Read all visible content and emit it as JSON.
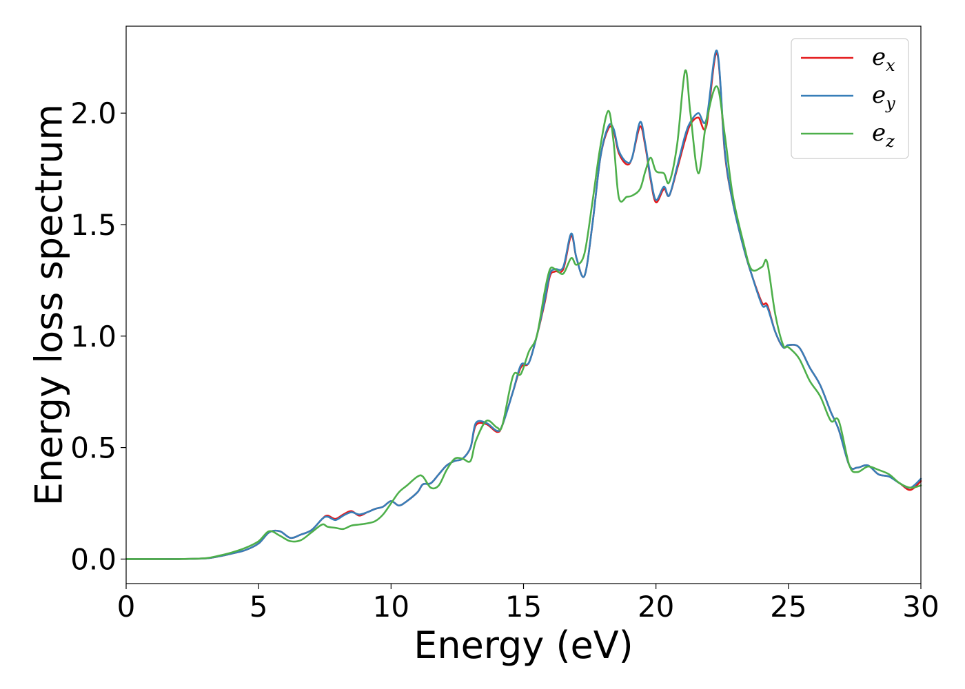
{
  "chart_data": {
    "type": "line",
    "xlabel": "Energy (eV)",
    "ylabel": "Energy loss spectrum",
    "xlim": [
      0,
      30
    ],
    "ylim": [
      -0.11,
      2.39
    ],
    "xticks": [
      0,
      5,
      10,
      15,
      20,
      25,
      30
    ],
    "xtick_labels": [
      "0",
      "5",
      "10",
      "15",
      "20",
      "25",
      "30"
    ],
    "yticks": [
      0.0,
      0.5,
      1.0,
      1.5,
      2.0
    ],
    "ytick_labels": [
      "0.0",
      "0.5",
      "1.0",
      "1.5",
      "2.0"
    ],
    "grid": false,
    "legend_position": "top-right",
    "x": [
      0,
      1,
      2,
      3,
      3.5,
      4,
      4.5,
      5,
      5.4,
      5.8,
      6.2,
      6.6,
      7,
      7.4,
      7.6,
      7.9,
      8.2,
      8.5,
      8.8,
      9.1,
      9.4,
      9.7,
      10,
      10.3,
      10.6,
      11,
      11.2,
      11.5,
      11.8,
      12.1,
      12.4,
      12.7,
      13,
      13.2,
      13.6,
      14,
      14.2,
      14.6,
      14.9,
      15.2,
      15.5,
      15.8,
      16,
      16.2,
      16.5,
      16.8,
      17,
      17.3,
      17.6,
      17.9,
      18.2,
      18.4,
      18.6,
      18.9,
      19.1,
      19.4,
      19.6,
      19.8,
      20,
      20.3,
      20.5,
      20.8,
      21.1,
      21.3,
      21.6,
      21.9,
      22.3,
      22.6,
      22.9,
      23.3,
      23.6,
      24,
      24.2,
      24.5,
      24.8,
      25,
      25.4,
      25.8,
      26.2,
      26.6,
      26.9,
      27.3,
      27.6,
      28,
      28.4,
      28.8,
      29.2,
      29.6,
      30
    ],
    "series": [
      {
        "name": "e_x",
        "legend_main": "e",
        "legend_sub": "x",
        "color": "#e41a1c",
        "values": [
          0,
          0,
          0,
          0.003,
          0.012,
          0.025,
          0.04,
          0.07,
          0.12,
          0.125,
          0.095,
          0.11,
          0.13,
          0.18,
          0.195,
          0.18,
          0.2,
          0.215,
          0.195,
          0.21,
          0.225,
          0.235,
          0.26,
          0.24,
          0.26,
          0.3,
          0.335,
          0.34,
          0.38,
          0.42,
          0.44,
          0.45,
          0.5,
          0.6,
          0.605,
          0.57,
          0.6,
          0.75,
          0.86,
          0.88,
          1.0,
          1.15,
          1.27,
          1.29,
          1.3,
          1.45,
          1.35,
          1.27,
          1.5,
          1.8,
          1.93,
          1.92,
          1.82,
          1.77,
          1.8,
          1.94,
          1.85,
          1.7,
          1.6,
          1.66,
          1.63,
          1.75,
          1.88,
          1.95,
          1.98,
          1.94,
          2.27,
          1.82,
          1.6,
          1.4,
          1.28,
          1.15,
          1.14,
          1.02,
          0.95,
          0.96,
          0.95,
          0.86,
          0.78,
          0.66,
          0.58,
          0.42,
          0.41,
          0.42,
          0.38,
          0.37,
          0.34,
          0.31,
          0.35
        ]
      },
      {
        "name": "e_y",
        "legend_main": "e",
        "legend_sub": "y",
        "color": "#377eb8",
        "values": [
          0,
          0,
          0,
          0.003,
          0.012,
          0.025,
          0.04,
          0.07,
          0.12,
          0.125,
          0.095,
          0.11,
          0.13,
          0.18,
          0.19,
          0.175,
          0.195,
          0.21,
          0.2,
          0.21,
          0.225,
          0.235,
          0.26,
          0.24,
          0.26,
          0.3,
          0.335,
          0.34,
          0.38,
          0.42,
          0.44,
          0.45,
          0.5,
          0.61,
          0.61,
          0.575,
          0.6,
          0.75,
          0.87,
          0.88,
          1.0,
          1.16,
          1.28,
          1.3,
          1.31,
          1.46,
          1.35,
          1.27,
          1.5,
          1.8,
          1.94,
          1.93,
          1.83,
          1.78,
          1.8,
          1.96,
          1.86,
          1.71,
          1.61,
          1.67,
          1.63,
          1.76,
          1.9,
          1.96,
          2.0,
          1.97,
          2.28,
          1.83,
          1.6,
          1.4,
          1.28,
          1.14,
          1.13,
          1.02,
          0.95,
          0.96,
          0.95,
          0.86,
          0.78,
          0.66,
          0.58,
          0.42,
          0.41,
          0.42,
          0.38,
          0.37,
          0.34,
          0.32,
          0.36
        ]
      },
      {
        "name": "e_z",
        "legend_main": "e",
        "legend_sub": "z",
        "color": "#4daf4a",
        "values": [
          0,
          0,
          0,
          0.004,
          0.015,
          0.03,
          0.05,
          0.08,
          0.125,
          0.105,
          0.08,
          0.085,
          0.12,
          0.155,
          0.145,
          0.14,
          0.135,
          0.15,
          0.155,
          0.16,
          0.17,
          0.2,
          0.25,
          0.3,
          0.33,
          0.37,
          0.37,
          0.32,
          0.33,
          0.4,
          0.45,
          0.45,
          0.44,
          0.53,
          0.62,
          0.59,
          0.6,
          0.82,
          0.83,
          0.93,
          1.0,
          1.2,
          1.3,
          1.3,
          1.28,
          1.35,
          1.32,
          1.37,
          1.6,
          1.85,
          2.01,
          1.87,
          1.62,
          1.625,
          1.63,
          1.66,
          1.74,
          1.8,
          1.74,
          1.73,
          1.69,
          1.86,
          2.19,
          2.0,
          1.73,
          1.96,
          2.12,
          1.9,
          1.63,
          1.42,
          1.3,
          1.31,
          1.33,
          1.1,
          0.96,
          0.95,
          0.9,
          0.8,
          0.73,
          0.62,
          0.62,
          0.42,
          0.39,
          0.415,
          0.4,
          0.38,
          0.34,
          0.32,
          0.33
        ]
      }
    ]
  }
}
